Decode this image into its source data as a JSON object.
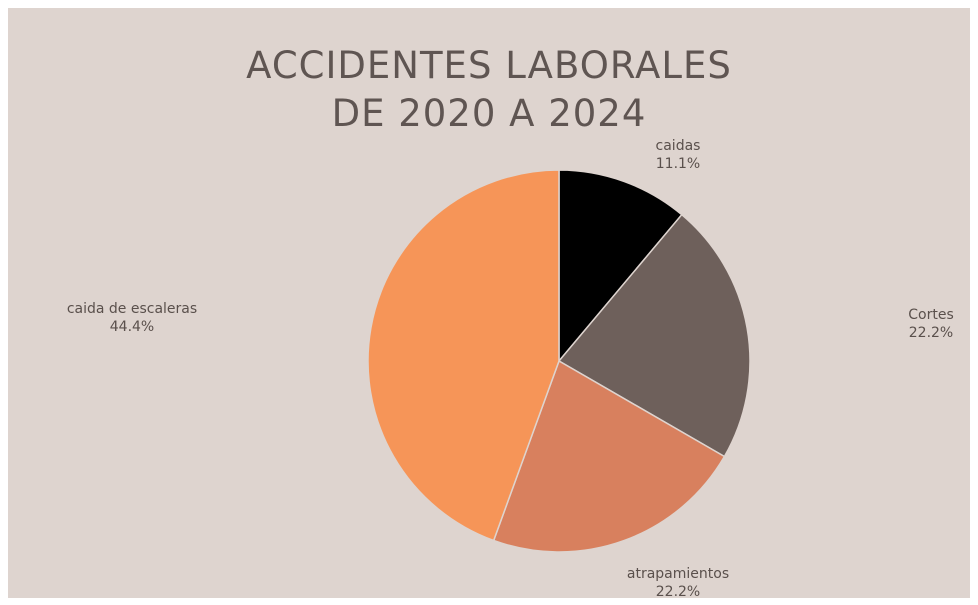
{
  "chart_data": {
    "type": "pie",
    "title_line1": "ACCIDENTES LABORALES",
    "title_line2": "DE 2020 A 2024",
    "slices": [
      {
        "label": "caidas",
        "percent_label": "11.1%",
        "value": 11.1,
        "color": "#000000"
      },
      {
        "label": "Cortes",
        "percent_label": "22.2%",
        "value": 22.2,
        "color": "#6e605b"
      },
      {
        "label": "atrapamientos",
        "percent_label": "22.2%",
        "value": 22.2,
        "color": "#d8805e"
      },
      {
        "label": "caida de escaleras",
        "percent_label": "44.4%",
        "value": 44.4,
        "color": "#f69558"
      }
    ]
  }
}
